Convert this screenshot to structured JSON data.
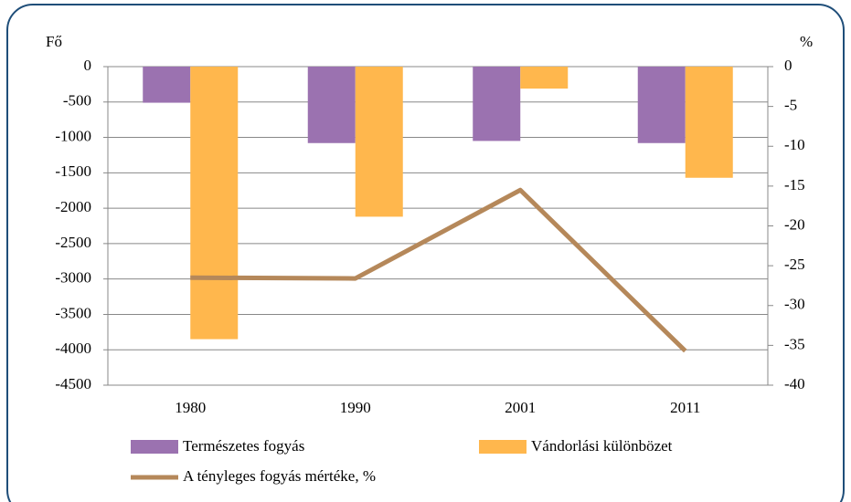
{
  "chart_data": {
    "type": "bar",
    "ylabel": "Fő",
    "y2label": "%",
    "categories": [
      "1980",
      "1990",
      "2001",
      "2011"
    ],
    "series": [
      {
        "name": "Természetes fogyás",
        "type": "bar",
        "color": "#9b72b0",
        "values": [
          -510,
          -1080,
          -1050,
          -1080
        ]
      },
      {
        "name": "Vándorlási különbözet",
        "type": "bar",
        "color": "#ffb74d",
        "values": [
          -3850,
          -2120,
          -310,
          -1570
        ]
      },
      {
        "name": "A tényleges fogyás mértéke, %",
        "type": "line",
        "axis": "y2",
        "color": "#b5885a",
        "values": [
          -26.5,
          -26.6,
          -15.5,
          -35.7
        ]
      }
    ],
    "ylim": [
      -4500,
      0
    ],
    "yticks": [
      0,
      -500,
      -1000,
      -1500,
      -2000,
      -2500,
      -3000,
      -3500,
      -4000,
      -4500
    ],
    "y2lim": [
      -40,
      0
    ],
    "y2ticks": [
      0,
      -5,
      -10,
      -15,
      -20,
      -25,
      -30,
      -35,
      -40
    ],
    "grid": true
  }
}
